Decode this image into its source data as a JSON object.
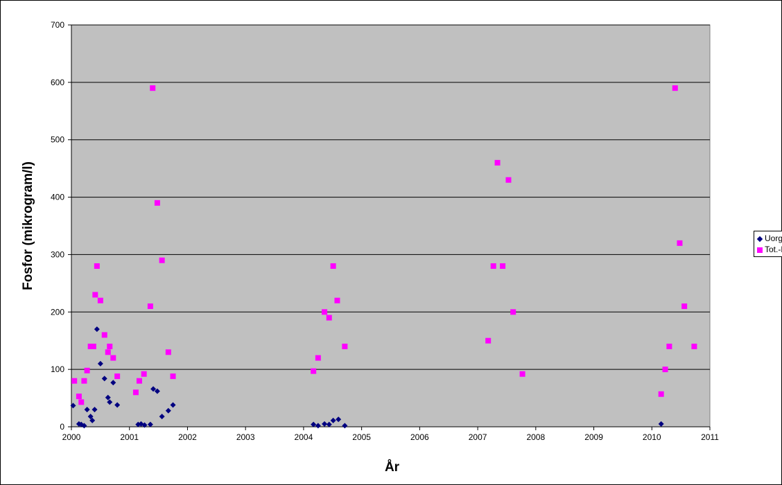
{
  "chart_data": {
    "type": "scatter",
    "title": "",
    "xlabel": "År",
    "ylabel": "Fosfor (mikrogram/l)",
    "xlim": [
      2000,
      2011
    ],
    "ylim": [
      0,
      700
    ],
    "x_ticks": [
      "2000",
      "2001",
      "2002",
      "2003",
      "2004",
      "2005",
      "2006",
      "2007",
      "2008",
      "2009",
      "2010",
      "2011"
    ],
    "y_ticks": [
      "0",
      "100",
      "200",
      "300",
      "400",
      "500",
      "600",
      "700"
    ],
    "grid": "horizontal",
    "plot_background": "#c0c0c0",
    "legend_position": "right",
    "series": [
      {
        "name": "Uorg. P",
        "marker": "diamond",
        "color": "#000080",
        "points": [
          [
            2000.03,
            37
          ],
          [
            2000.13,
            5
          ],
          [
            2000.17,
            4
          ],
          [
            2000.22,
            2
          ],
          [
            2000.27,
            30
          ],
          [
            2000.33,
            18
          ],
          [
            2000.36,
            11
          ],
          [
            2000.4,
            30
          ],
          [
            2000.44,
            170
          ],
          [
            2000.5,
            110
          ],
          [
            2000.57,
            84
          ],
          [
            2000.63,
            51
          ],
          [
            2000.66,
            43
          ],
          [
            2000.72,
            77
          ],
          [
            2000.79,
            38
          ],
          [
            2001.15,
            4
          ],
          [
            2001.2,
            5
          ],
          [
            2001.26,
            3
          ],
          [
            2001.36,
            4
          ],
          [
            2001.41,
            66
          ],
          [
            2001.48,
            62
          ],
          [
            2001.56,
            18
          ],
          [
            2001.67,
            28
          ],
          [
            2001.75,
            38
          ],
          [
            2004.17,
            4
          ],
          [
            2004.25,
            2
          ],
          [
            2004.36,
            5
          ],
          [
            2004.44,
            4
          ],
          [
            2004.51,
            11
          ],
          [
            2004.6,
            13
          ],
          [
            2004.71,
            2
          ],
          [
            2010.16,
            5
          ]
        ]
      },
      {
        "name": "Tot.-P",
        "marker": "square",
        "color": "#ff00ff",
        "points": [
          [
            2000.05,
            80
          ],
          [
            2000.13,
            53
          ],
          [
            2000.17,
            43
          ],
          [
            2000.22,
            80
          ],
          [
            2000.27,
            98
          ],
          [
            2000.33,
            140
          ],
          [
            2000.38,
            140
          ],
          [
            2000.41,
            230
          ],
          [
            2000.44,
            280
          ],
          [
            2000.5,
            220
          ],
          [
            2000.57,
            160
          ],
          [
            2000.63,
            130
          ],
          [
            2000.66,
            140
          ],
          [
            2000.72,
            120
          ],
          [
            2000.79,
            88
          ],
          [
            2001.11,
            60
          ],
          [
            2001.17,
            80
          ],
          [
            2001.25,
            92
          ],
          [
            2001.36,
            210
          ],
          [
            2001.4,
            590
          ],
          [
            2001.48,
            390
          ],
          [
            2001.56,
            290
          ],
          [
            2001.67,
            130
          ],
          [
            2001.75,
            88
          ],
          [
            2004.17,
            97
          ],
          [
            2004.25,
            120
          ],
          [
            2004.36,
            200
          ],
          [
            2004.44,
            190
          ],
          [
            2004.51,
            280
          ],
          [
            2004.58,
            220
          ],
          [
            2004.71,
            140
          ],
          [
            2007.18,
            150
          ],
          [
            2007.27,
            280
          ],
          [
            2007.34,
            460
          ],
          [
            2007.43,
            280
          ],
          [
            2007.53,
            430
          ],
          [
            2007.61,
            200
          ],
          [
            2007.77,
            92
          ],
          [
            2010.16,
            57
          ],
          [
            2010.23,
            100
          ],
          [
            2010.3,
            140
          ],
          [
            2010.4,
            590
          ],
          [
            2010.48,
            320
          ],
          [
            2010.56,
            210
          ],
          [
            2010.73,
            140
          ]
        ]
      }
    ]
  }
}
